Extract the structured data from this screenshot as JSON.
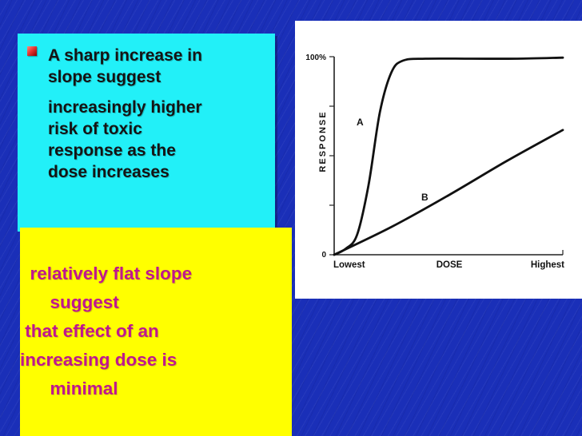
{
  "left_panel": {
    "bullet_icon": "red-square-bullet",
    "line1": "A sharp increase in",
    "line2": "slope suggest",
    "line3": "increasingly higher",
    "line4": "risk of toxic",
    "line5": "response as the",
    "line6": "dose increases"
  },
  "callout": {
    "line1": "  relatively flat slope",
    "line2": "      suggest",
    "line3": " that effect of an",
    "line4": "increasing dose is",
    "line5": "      minimal"
  },
  "colors": {
    "background": "#1a2fb8",
    "cyan_box": "#22f0f8",
    "yellow_box": "#ffff00",
    "callout_text": "#c0178f"
  },
  "chart_data": {
    "type": "line",
    "title": "",
    "xlabel": "DOSE",
    "ylabel": "RESPONSE",
    "x_tick_labels": [
      "Lowest",
      "Highest"
    ],
    "y_tick_labels": [
      "0",
      "100%"
    ],
    "ylim": [
      0,
      100
    ],
    "xlim": [
      0,
      1
    ],
    "grid": false,
    "series": [
      {
        "name": "A",
        "x": [
          0,
          0.05,
          0.1,
          0.15,
          0.2,
          0.25,
          0.3,
          0.4,
          0.6,
          0.8,
          1.0
        ],
        "y": [
          0,
          3,
          10,
          35,
          72,
          92,
          98,
          99,
          99,
          99,
          99.5
        ]
      },
      {
        "name": "B",
        "x": [
          0,
          0.25,
          0.5,
          0.75,
          1.0
        ],
        "y": [
          0,
          14,
          30,
          47,
          63
        ]
      }
    ]
  }
}
